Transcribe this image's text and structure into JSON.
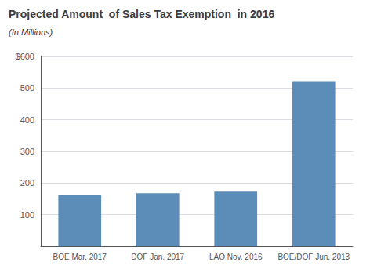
{
  "chart_data": {
    "type": "bar",
    "title": "Projected Amount  of Sales Tax Exemption  in 2016",
    "subtitle": "(In Millions)",
    "categories": [
      "BOE Mar. 2017",
      "DOF Jan. 2017",
      "LAO Nov. 2016",
      "BOE/DOF Jun. 2013"
    ],
    "values": [
      163,
      168,
      173,
      522
    ],
    "color": "#5b8db8",
    "ylim": [
      0,
      600
    ],
    "yticks": [
      {
        "value": 0,
        "label": null
      },
      100,
      200,
      300,
      400,
      500,
      {
        "value": 600,
        "label": "$600"
      }
    ],
    "grid": true
  }
}
